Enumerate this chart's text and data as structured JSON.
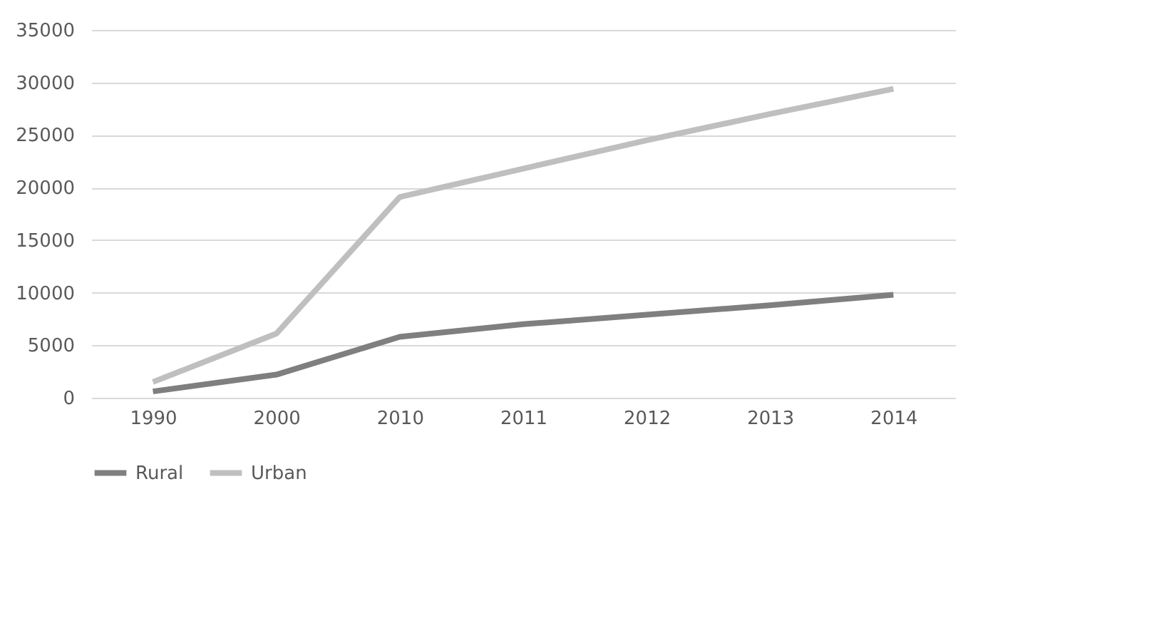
{
  "chart_data": {
    "type": "line",
    "categories": [
      "1990",
      "2000",
      "2010",
      "2011",
      "2012",
      "2013",
      "2014"
    ],
    "series": [
      {
        "name": "Rural",
        "color": "#7f7f7f",
        "values": [
          600,
          2200,
          5800,
          7000,
          7900,
          8800,
          9800
        ]
      },
      {
        "name": "Urban",
        "color": "#bfbfbf",
        "values": [
          1500,
          6100,
          19100,
          21800,
          24500,
          27000,
          29400
        ]
      }
    ],
    "ylim": [
      0,
      35000
    ],
    "yticks": [
      0,
      5000,
      10000,
      15000,
      20000,
      25000,
      30000,
      35000
    ],
    "grid": "y",
    "legend": "bottom",
    "marker": "none",
    "line_style": "solid"
  }
}
